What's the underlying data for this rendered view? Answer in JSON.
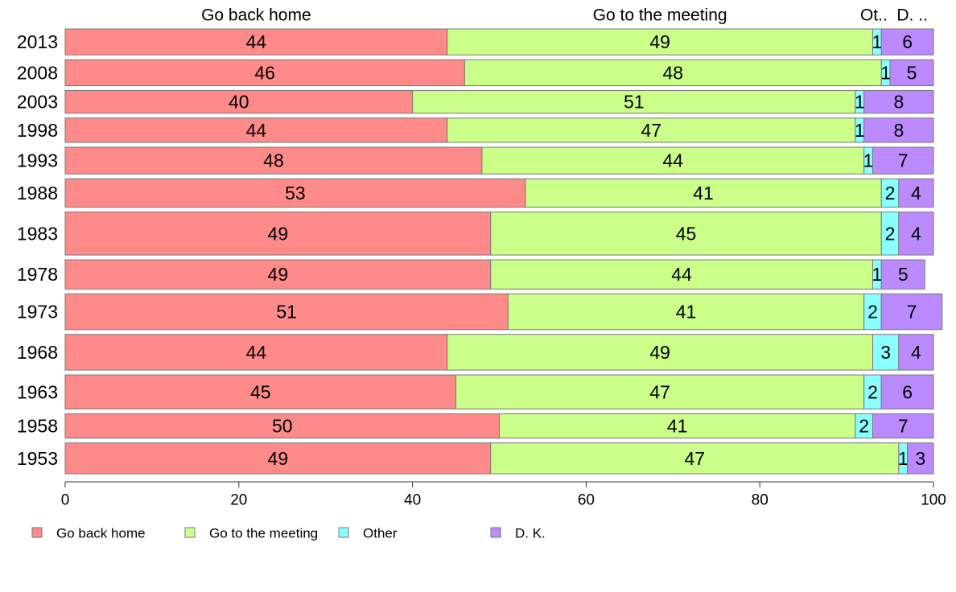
{
  "chart_data": {
    "type": "bar",
    "orientation": "horizontal",
    "stacked": true,
    "categories": [
      "2013",
      "2008",
      "2003",
      "1998",
      "1993",
      "1988",
      "1983",
      "1978",
      "1973",
      "1968",
      "1963",
      "1958",
      "1953"
    ],
    "bar_weights": [
      32,
      32,
      28,
      30,
      33,
      35,
      53,
      36,
      44,
      44,
      42,
      30,
      38
    ],
    "series": [
      {
        "name": "Go back home",
        "color": "#ff8a8a",
        "values": [
          44,
          46,
          40,
          44,
          48,
          53,
          49,
          49,
          51,
          44,
          45,
          50,
          49
        ]
      },
      {
        "name": "Go to the meeting",
        "color": "#ccff8a",
        "values": [
          49,
          48,
          51,
          47,
          44,
          41,
          45,
          44,
          41,
          49,
          47,
          41,
          47
        ]
      },
      {
        "name": "Other",
        "color": "#8affff",
        "values": [
          1,
          1,
          1,
          1,
          1,
          2,
          2,
          1,
          2,
          3,
          2,
          2,
          1
        ]
      },
      {
        "name": "D. K.",
        "color": "#bb8aff",
        "values": [
          6,
          5,
          8,
          8,
          7,
          4,
          4,
          5,
          7,
          4,
          6,
          7,
          3
        ]
      }
    ],
    "column_headers": [
      "Go back home",
      "Go to the meeting",
      "Ot..",
      "D. .."
    ],
    "legend_labels": [
      "Go back home",
      "Go to the meeting",
      "Other",
      "D. K."
    ],
    "xlim": [
      0,
      100
    ],
    "x_ticks": [
      "0",
      "20",
      "40",
      "60",
      "80",
      "100"
    ],
    "grid": false,
    "legend_position": "bottom-left"
  }
}
